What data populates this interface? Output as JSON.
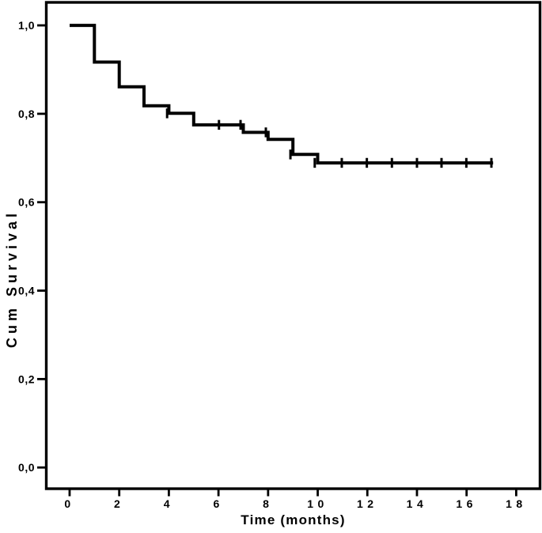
{
  "chart_data": {
    "type": "line",
    "subtype": "kaplan-meier-step-survival",
    "title": "",
    "xlabel": "Time (months)",
    "ylabel": "Cum Survival",
    "grid": false,
    "legend_position": "none",
    "decimal_separator": ",",
    "xlim": [
      -0.94,
      18.96
    ],
    "ylim": [
      -0.048,
      1.052
    ],
    "x_ticks": {
      "values": [
        0,
        2,
        4,
        6,
        8,
        10,
        12,
        14,
        16,
        18
      ],
      "labels": [
        "0",
        "2",
        "4",
        "6",
        "8",
        "10",
        "12",
        "14",
        "16",
        "18"
      ]
    },
    "y_ticks": {
      "values": [
        1.0,
        0.8,
        0.6,
        0.4,
        0.2,
        0.0
      ],
      "labels": [
        "1,0",
        "0,8",
        "0,6",
        "0,4",
        "0,2",
        "0,0"
      ]
    },
    "series": [
      {
        "name": "cumulative-survival",
        "color": "#000000",
        "steps": [
          {
            "t_start": 0,
            "t_end": 1,
            "survival": 1.0
          },
          {
            "t_start": 1,
            "t_end": 2,
            "survival": 0.917
          },
          {
            "t_start": 2,
            "t_end": 3,
            "survival": 0.861
          },
          {
            "t_start": 3,
            "t_end": 4,
            "survival": 0.818
          },
          {
            "t_start": 4,
            "t_end": 5,
            "survival": 0.801
          },
          {
            "t_start": 5,
            "t_end": 7,
            "survival": 0.775
          },
          {
            "t_start": 7,
            "t_end": 8,
            "survival": 0.758
          },
          {
            "t_start": 8,
            "t_end": 9,
            "survival": 0.742
          },
          {
            "t_start": 9,
            "t_end": 10,
            "survival": 0.708
          },
          {
            "t_start": 10,
            "t_end": 17.07,
            "survival": 0.689
          }
        ],
        "censored_marks": [
          {
            "t": 3.93,
            "survival": 0.801
          },
          {
            "t": 6.02,
            "survival": 0.775
          },
          {
            "t": 6.89,
            "survival": 0.775
          },
          {
            "t": 7.91,
            "survival": 0.758
          },
          {
            "t": 8.9,
            "survival": 0.708
          },
          {
            "t": 9.88,
            "survival": 0.689
          },
          {
            "t": 10.97,
            "survival": 0.689
          },
          {
            "t": 11.98,
            "survival": 0.689
          },
          {
            "t": 12.99,
            "survival": 0.689
          },
          {
            "t": 14.0,
            "survival": 0.689
          },
          {
            "t": 14.99,
            "survival": 0.689
          },
          {
            "t": 15.99,
            "survival": 0.689
          },
          {
            "t": 17.0,
            "survival": 0.689
          }
        ]
      }
    ],
    "colors": {
      "curve": "#000000",
      "frame": "#000000",
      "labels": "#000000",
      "background": "#ffffff"
    }
  }
}
